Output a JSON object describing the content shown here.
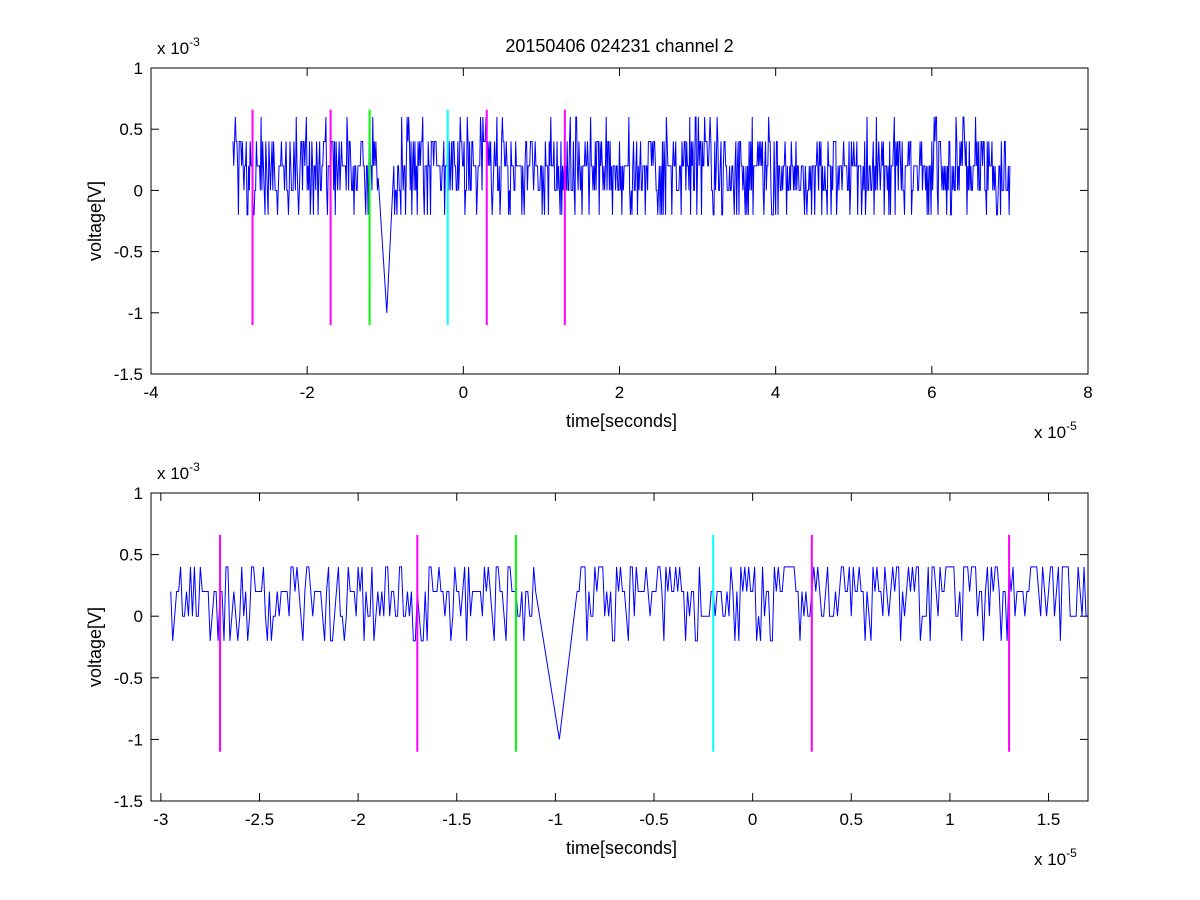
{
  "chart_data": [
    {
      "type": "line",
      "title": "20150406 024231 channel 2",
      "xlabel": "time[seconds]",
      "ylabel": "voltage[V]",
      "xlim": [
        -4e-05,
        8e-05
      ],
      "ylim": [
        -0.0015,
        0.001
      ],
      "x_ticks": [
        -4e-05,
        -2e-05,
        0,
        2e-05,
        4e-05,
        6e-05,
        8e-05
      ],
      "x_tick_labels": [
        "-4",
        "-2",
        "0",
        "2",
        "4",
        "6",
        "8"
      ],
      "y_ticks": [
        -0.0015,
        -0.001,
        -0.0005,
        0,
        0.0005,
        0.001
      ],
      "y_tick_labels": [
        "-1.5",
        "-1",
        "-0.5",
        "0",
        "0.5",
        "1"
      ],
      "x_exponent_label": "x 10",
      "x_exponent_power": "-5",
      "y_exponent_label": "x 10",
      "y_exponent_power": "-3",
      "grid": false,
      "signal": {
        "color": "#0000ff",
        "x_start": -2.95e-05,
        "x_end": 7e-05,
        "levels_V": [
          -0.0002,
          0,
          0.0002,
          0.0004,
          0.0006
        ],
        "baseline_V": 0.0002,
        "dip": {
          "x": -9.8e-06,
          "min_V": -0.001
        }
      },
      "markers": [
        {
          "x": -2.7e-05,
          "y0": -0.0011,
          "y1": 0.00066,
          "color": "#ff00ff"
        },
        {
          "x": -1.7e-05,
          "y0": -0.0011,
          "y1": 0.00066,
          "color": "#ff00ff"
        },
        {
          "x": -1.2e-05,
          "y0": -0.0011,
          "y1": 0.00066,
          "color": "#00ff00"
        },
        {
          "x": -2e-06,
          "y0": -0.0011,
          "y1": 0.00066,
          "color": "#00ffff"
        },
        {
          "x": 3e-06,
          "y0": -0.0011,
          "y1": 0.00066,
          "color": "#ff00ff"
        },
        {
          "x": 1.3e-05,
          "y0": -0.0011,
          "y1": 0.00066,
          "color": "#ff00ff"
        }
      ]
    },
    {
      "type": "line",
      "title": "",
      "xlabel": "time[seconds]",
      "ylabel": "voltage[V]",
      "xlim": [
        -3.05e-05,
        1.7e-05
      ],
      "ylim": [
        -0.0015,
        0.001
      ],
      "x_ticks": [
        -3e-05,
        -2.5e-05,
        -2e-05,
        -1.5e-05,
        -1e-05,
        -5e-06,
        0,
        5e-06,
        1e-05,
        1.5e-05
      ],
      "x_tick_labels": [
        "-3",
        "-2.5",
        "-2",
        "-1.5",
        "-1",
        "-0.5",
        "0",
        "0.5",
        "1",
        "1.5"
      ],
      "y_ticks": [
        -0.0015,
        -0.001,
        -0.0005,
        0,
        0.0005,
        0.001
      ],
      "y_tick_labels": [
        "-1.5",
        "-1",
        "-0.5",
        "0",
        "0.5",
        "1"
      ],
      "x_exponent_label": "x 10",
      "x_exponent_power": "-5",
      "y_exponent_label": "x 10",
      "y_exponent_power": "-3",
      "grid": false,
      "signal": {
        "color": "#0000ff",
        "x_start": -2.95e-05,
        "x_end": 1.7e-05,
        "levels_V": [
          -0.0002,
          0,
          0.0002,
          0.0004
        ],
        "baseline_V": 0.0002,
        "dip": {
          "x": -9.8e-06,
          "min_V": -0.001
        }
      },
      "markers": [
        {
          "x": -2.7e-05,
          "y0": -0.0011,
          "y1": 0.00066,
          "color": "#ff00ff"
        },
        {
          "x": -1.7e-05,
          "y0": -0.0011,
          "y1": 0.00066,
          "color": "#ff00ff"
        },
        {
          "x": -1.2e-05,
          "y0": -0.0011,
          "y1": 0.00066,
          "color": "#00ff00"
        },
        {
          "x": -2e-06,
          "y0": -0.0011,
          "y1": 0.00066,
          "color": "#00ffff"
        },
        {
          "x": 3e-06,
          "y0": -0.0011,
          "y1": 0.00066,
          "color": "#ff00ff"
        },
        {
          "x": 1.3e-05,
          "y0": -0.0011,
          "y1": 0.00066,
          "color": "#ff00ff"
        }
      ]
    }
  ]
}
